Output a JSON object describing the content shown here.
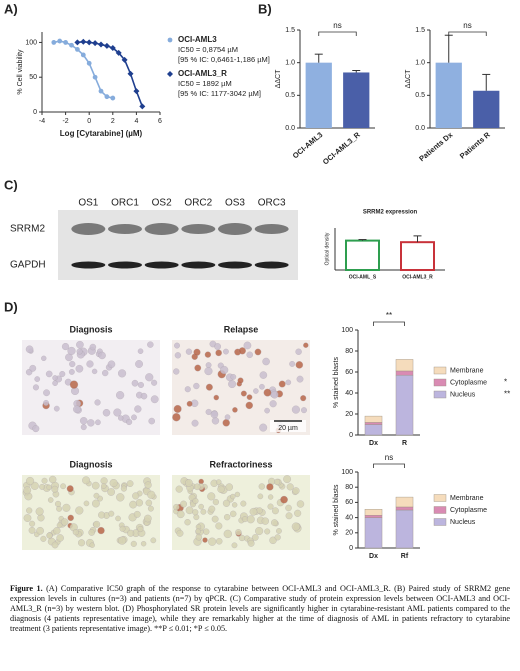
{
  "panels": [
    "A)",
    "B)",
    "C)",
    "D)"
  ],
  "chart_data": [
    {
      "type": "line",
      "xlabel": "Log [Cytarabine] (µM)",
      "ylabel": "% Cell viability",
      "xlim": [
        -4,
        6
      ],
      "xticks": [
        -4,
        -2,
        0,
        2,
        4,
        6
      ],
      "ylim": [
        0,
        115
      ],
      "yticks": [
        0,
        50,
        100
      ],
      "series": [
        {
          "name": "OCI-AML3",
          "color": "#86acdc",
          "marker": "circle",
          "ic50_label": "IC50 = 0,8754 µM",
          "ci_label": "[95 % IC: 0,6461-1,186 µM]",
          "x": [
            -3,
            -2.5,
            -2,
            -1.5,
            -1,
            -0.5,
            0,
            0.5,
            1,
            1.5,
            2
          ],
          "values": [
            100,
            102,
            100,
            96,
            90,
            82,
            70,
            50,
            30,
            22,
            20
          ]
        },
        {
          "name": "OCI-AML3_R",
          "color": "#1f3f8f",
          "marker": "diamond",
          "ic50_label": "IC50 = 1892 µM",
          "ci_label": "[95 % IC: 1177-3042 µM]",
          "x": [
            -1,
            -0.5,
            0,
            0.5,
            1,
            1.5,
            2,
            2.5,
            3,
            3.5,
            4,
            4.5
          ],
          "values": [
            100,
            101,
            100,
            99,
            97,
            95,
            92,
            85,
            75,
            55,
            30,
            8
          ]
        }
      ]
    },
    {
      "type": "bar",
      "ylabel": "ΔΔCT",
      "annotation": "ns",
      "categories": [
        "OCI-AML3",
        "OCI-AML3_R"
      ],
      "values": [
        1.0,
        0.85
      ],
      "errors": [
        0.13,
        0.03
      ],
      "colors": [
        "#8fb0e0",
        "#4a5fa8"
      ],
      "ylim": [
        0,
        1.5
      ],
      "yticks": [
        {
          "value": 0,
          "label": "0.0"
        },
        0.5,
        {
          "value": 1,
          "label": "1.0"
        },
        1.5
      ]
    },
    {
      "type": "bar",
      "ylabel": "ΔΔCT",
      "annotation": "ns",
      "categories": [
        "Patients Dx",
        "Patients R"
      ],
      "values": [
        1.0,
        0.57
      ],
      "errors": [
        0.42,
        0.25
      ],
      "colors": [
        "#8fb0e0",
        "#4a5fa8"
      ],
      "ylim": [
        0,
        1.5
      ],
      "yticks": [
        {
          "value": 0,
          "label": "0.0"
        },
        0.5,
        {
          "value": 1,
          "label": "1.0"
        },
        1.5
      ]
    },
    {
      "type": "outline_bar",
      "title": "SRRM2 expression",
      "ylabel": "Optical density",
      "categories": [
        "OCI-AML_S",
        "OCI-AML3_R"
      ],
      "values": [
        0.56,
        0.53
      ],
      "errors": [
        0.02,
        0.12
      ],
      "colors": [
        "#2e9e4f",
        "#c8323a"
      ],
      "ylim": [
        0,
        0.8
      ]
    },
    {
      "type": "stacked_bar",
      "ylabel": "% stained blasts",
      "annotation": "**",
      "categories": [
        "Dx",
        "R"
      ],
      "ylim": [
        0,
        100
      ],
      "yticks": [
        0,
        20,
        40,
        60,
        80,
        100
      ],
      "series": [
        {
          "name": "Nucleus",
          "color": "#bcb5de",
          "significance": "**",
          "values": [
            10,
            57
          ]
        },
        {
          "name": "Cytoplasme",
          "color": "#d98bb3",
          "significance": "*",
          "values": [
            2,
            4
          ]
        },
        {
          "name": "Membrane",
          "color": "#f5dcbc",
          "values": [
            6,
            11
          ]
        }
      ]
    },
    {
      "type": "stacked_bar",
      "ylabel": "% stained blasts",
      "annotation": "ns",
      "categories": [
        "Dx",
        "Rf"
      ],
      "ylim": [
        0,
        100
      ],
      "yticks": [
        0,
        20,
        40,
        60,
        80,
        100
      ],
      "series": [
        {
          "name": "Nucleus",
          "color": "#bcb5de",
          "values": [
            40,
            50
          ]
        },
        {
          "name": "Cytoplasme",
          "color": "#d98bb3",
          "values": [
            3,
            4
          ]
        },
        {
          "name": "Membrane",
          "color": "#f5dcbc",
          "values": [
            8,
            13
          ]
        }
      ]
    }
  ],
  "blot": {
    "lanes": [
      "OS1",
      "ORC1",
      "OS2",
      "ORC2",
      "OS3",
      "ORC3"
    ],
    "rows": [
      "SRRM2",
      "GAPDH"
    ]
  },
  "micrographs": [
    {
      "title": "Diagnosis"
    },
    {
      "title": "Relapse"
    },
    {
      "title": "Diagnosis"
    },
    {
      "title": "Refractoriness"
    }
  ],
  "scale_bar": "20 µm",
  "caption": {
    "label": "Figure 1.",
    "text": "(A) Comparative IC50 graph of the response to cytarabine between OCI-AML3 and OCI-AML3_R. (B) Paired study of SRRM2 gene expression levels in cultures (n=3) and patients (n=7) by qPCR. (C) Comparative study of protein expression levels between OCI-AML3 and OCI-AML3_R (n=3) by western blot. (D) Phosphorylated SR protein levels are significantly higher in cytarabine-resistant AML patients compared to the diagnosis (4 patients representative image), while they are remarkably higher at the time of diagnosis of AML in patients refractory to cytarabine treatment (3 patients representative image). **P ≤ 0.01; *P ≤ 0.05."
  }
}
